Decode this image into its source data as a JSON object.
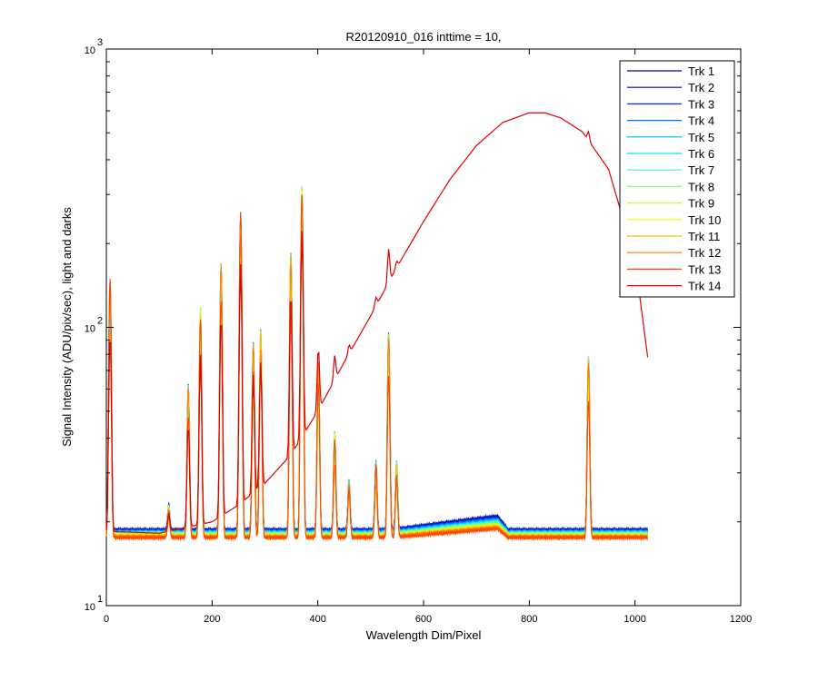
{
  "chart_data": {
    "type": "line",
    "title": "R20120910_016 inttime = 10,",
    "xlabel": "Wavelength Dim/Pixel",
    "ylabel": "Signal Intensity (ADU/pix/sec), light and darks",
    "xlim": [
      0,
      1200
    ],
    "ylim": [
      10,
      1000
    ],
    "yscale": "log",
    "grid": false,
    "legend_position": "top-right",
    "x_ticks": [
      "0",
      "200",
      "400",
      "600",
      "800",
      "1000",
      "1200"
    ],
    "y_ticks": [
      {
        "base": "10",
        "exp": "1"
      },
      {
        "base": "10",
        "exp": "2"
      },
      {
        "base": "10",
        "exp": "3"
      }
    ],
    "series": [
      {
        "name": "Trk 1",
        "color": "#00008f"
      },
      {
        "name": "Trk 2",
        "color": "#0000d0"
      },
      {
        "name": "Trk 3",
        "color": "#0030ff"
      },
      {
        "name": "Trk 4",
        "color": "#0075ff"
      },
      {
        "name": "Trk 5",
        "color": "#00b5ff"
      },
      {
        "name": "Trk 6",
        "color": "#00e8ff"
      },
      {
        "name": "Trk 7",
        "color": "#40ffd0"
      },
      {
        "name": "Trk 8",
        "color": "#80ff80"
      },
      {
        "name": "Trk 9",
        "color": "#c0ff40"
      },
      {
        "name": "Trk 10",
        "color": "#f0ff00"
      },
      {
        "name": "Trk 11",
        "color": "#ffc000"
      },
      {
        "name": "Trk 12",
        "color": "#ff8000"
      },
      {
        "name": "Trk 13",
        "color": "#ff4000"
      },
      {
        "name": "Trk 14",
        "color": "#e00000"
      }
    ],
    "spectrum": {
      "x_range": [
        0,
        1024
      ],
      "baseline": 18,
      "peaks": [
        {
          "x": 7,
          "y": 150
        },
        {
          "x": 118,
          "y": 23
        },
        {
          "x": 155,
          "y": 62
        },
        {
          "x": 178,
          "y": 118
        },
        {
          "x": 217,
          "y": 170
        },
        {
          "x": 254,
          "y": 260
        },
        {
          "x": 278,
          "y": 88
        },
        {
          "x": 292,
          "y": 98
        },
        {
          "x": 349,
          "y": 185
        },
        {
          "x": 370,
          "y": 320
        },
        {
          "x": 401,
          "y": 75
        },
        {
          "x": 432,
          "y": 42
        },
        {
          "x": 459,
          "y": 28
        },
        {
          "x": 510,
          "y": 33
        },
        {
          "x": 534,
          "y": 95
        },
        {
          "x": 549,
          "y": 33
        },
        {
          "x": 912,
          "y": 78
        }
      ]
    },
    "lamp_curve": {
      "name": "Trk 14",
      "points": [
        [
          0,
          18.5
        ],
        [
          100,
          18.2
        ],
        [
          200,
          20
        ],
        [
          250,
          23
        ],
        [
          300,
          27.5
        ],
        [
          350,
          35
        ],
        [
          400,
          50
        ],
        [
          450,
          75
        ],
        [
          500,
          110
        ],
        [
          550,
          165
        ],
        [
          600,
          240
        ],
        [
          650,
          340
        ],
        [
          700,
          450
        ],
        [
          750,
          545
        ],
        [
          800,
          590
        ],
        [
          830,
          590
        ],
        [
          860,
          565
        ],
        [
          900,
          505
        ],
        [
          950,
          370
        ],
        [
          1000,
          175
        ],
        [
          1024,
          78
        ]
      ]
    }
  }
}
